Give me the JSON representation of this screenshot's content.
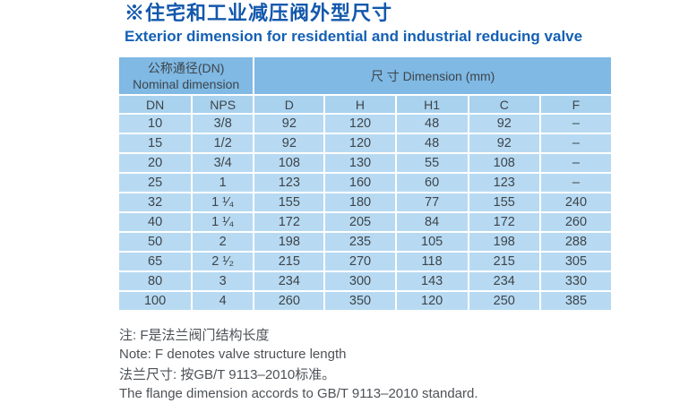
{
  "page": {
    "title_zh": "※住宅和工业减压阀外型尺寸",
    "title_en": "Exterior dimension for residential and industrial reducing valve"
  },
  "table": {
    "group_headers": {
      "nominal_zh": "公称通径(DN)",
      "nominal_en": "Nominal dimension",
      "dimension": "尺 寸 Dimension  (mm)"
    },
    "columns": [
      "DN",
      "NPS",
      "D",
      "H",
      "H1",
      "C",
      "F"
    ],
    "rows": [
      [
        "10",
        "3/8",
        "92",
        "120",
        "48",
        "92",
        "–"
      ],
      [
        "15",
        "1/2",
        "92",
        "120",
        "48",
        "92",
        "–"
      ],
      [
        "20",
        "3/4",
        "108",
        "130",
        "55",
        "108",
        "–"
      ],
      [
        "25",
        "1",
        "123",
        "160",
        "60",
        "123",
        "–"
      ],
      [
        "32",
        "1 ¹⁄₄",
        "155",
        "180",
        "77",
        "155",
        "240"
      ],
      [
        "40",
        "1 ¹⁄₄",
        "172",
        "205",
        "84",
        "172",
        "260"
      ],
      [
        "50",
        "2",
        "198",
        "235",
        "105",
        "198",
        "288"
      ],
      [
        "65",
        "2 ¹⁄₂",
        "215",
        "270",
        "118",
        "215",
        "305"
      ],
      [
        "80",
        "3",
        "234",
        "300",
        "143",
        "234",
        "330"
      ],
      [
        "100",
        "4",
        "260",
        "350",
        "120",
        "250",
        "385"
      ]
    ]
  },
  "notes": {
    "note_zh": "注: F是法兰阀门结构长度",
    "note_en": "Note: F denotes valve structure length",
    "flange_zh": "法兰尺寸: 按GB/T 9113–2010标准。",
    "flange_en": "The flange dimension accords to GB/T 9113–2010 standard."
  },
  "colors": {
    "title_blue": "#1358ac",
    "subtitle_blue": "#1460b5",
    "group_header_blue": "#7fb9e4",
    "subheader_blue": "#a9d2ee",
    "row_blue": "#b7daf2",
    "table_text": "#3e444a",
    "note_text": "#4d5257"
  }
}
